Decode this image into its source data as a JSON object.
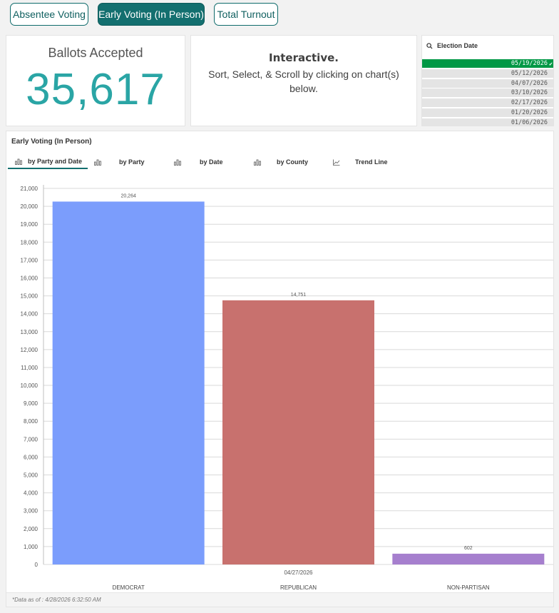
{
  "nav": {
    "buttons": [
      "Absentee Voting",
      "Early Voting (In Person)",
      "Total Turnout"
    ],
    "active_index": 1,
    "accent_color": "#136f6f"
  },
  "kpi": {
    "title": "Ballots Accepted",
    "value": "35,617",
    "value_color": "#2aa5a5"
  },
  "info": {
    "title": "Interactive.",
    "text": "Sort, Select, & Scroll by clicking on chart(s) below."
  },
  "filter": {
    "title": "Election Date",
    "icon": "search-icon",
    "dates": [
      "05/19/2026",
      "05/12/2026",
      "04/07/2026",
      "03/10/2026",
      "02/17/2026",
      "01/20/2026",
      "01/06/2026"
    ],
    "selected_index": 0,
    "selected_color": "#009845"
  },
  "chart_panel": {
    "title": "Early Voting (In Person)",
    "tabs": [
      {
        "label": "by Party and Date",
        "icon": "bar-chart-icon"
      },
      {
        "label": "by Party",
        "icon": "bar-chart-icon"
      },
      {
        "label": "by Date",
        "icon": "bar-chart-icon"
      },
      {
        "label": "by County",
        "icon": "bar-chart-icon"
      },
      {
        "label": "Trend Line",
        "icon": "line-chart-icon"
      }
    ],
    "active_tab": 0,
    "footer": "*Data as of : 4/28/2026 6:32:50 AM"
  },
  "chart_data": {
    "type": "bar",
    "title": "Early Voting (In Person)",
    "xlabel": "04/27/2026",
    "ylabel": "",
    "categories": [
      "DEMOCRAT",
      "REPUBLICAN",
      "NON-PARTISAN"
    ],
    "values": [
      20264,
      14751,
      602
    ],
    "value_labels": [
      "20,264",
      "14,751",
      "602"
    ],
    "colors": [
      "#7b9dfc",
      "#c8716e",
      "#a67fce"
    ],
    "ylim": [
      0,
      21000
    ],
    "yticks": [
      0,
      1000,
      2000,
      3000,
      4000,
      5000,
      6000,
      7000,
      8000,
      9000,
      10000,
      11000,
      12000,
      13000,
      14000,
      15000,
      16000,
      17000,
      18000,
      19000,
      20000,
      21000
    ],
    "ytick_labels": [
      "0",
      "1,000",
      "2,000",
      "3,000",
      "4,000",
      "5,000",
      "6,000",
      "7,000",
      "8,000",
      "9,000",
      "10,000",
      "11,000",
      "12,000",
      "13,000",
      "14,000",
      "15,000",
      "16,000",
      "17,000",
      "18,000",
      "19,000",
      "20,000",
      "21,000"
    ],
    "grid": true
  }
}
